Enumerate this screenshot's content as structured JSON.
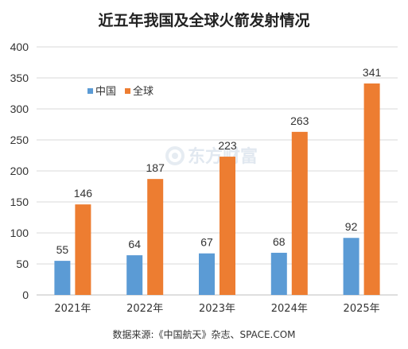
{
  "chart_data": {
    "type": "bar",
    "title": "近五年我国及全球火箭发射情况",
    "xlabel": "",
    "ylabel": "",
    "categories": [
      "2021年",
      "2022年",
      "2023年",
      "2024年",
      "2025年"
    ],
    "series": [
      {
        "name": "中国",
        "values": [
          55,
          64,
          67,
          68,
          92
        ],
        "color": "#5b9bd5"
      },
      {
        "name": "全球",
        "values": [
          146,
          187,
          223,
          263,
          341
        ],
        "color": "#ed7d31"
      }
    ],
    "ylim": [
      0,
      400
    ],
    "yticks": [
      "0",
      "50",
      "100",
      "150",
      "200",
      "250",
      "300",
      "350",
      "400"
    ],
    "grid": true,
    "legend_position": "top-left",
    "source": "数据来源:《中国航天》杂志、SPACE.COM"
  },
  "watermark": {
    "text": "东方财富",
    "icon": "swirl-logo-icon"
  },
  "colors": {
    "grid": "#d9d9d9",
    "axis": "#bfbfbf"
  }
}
